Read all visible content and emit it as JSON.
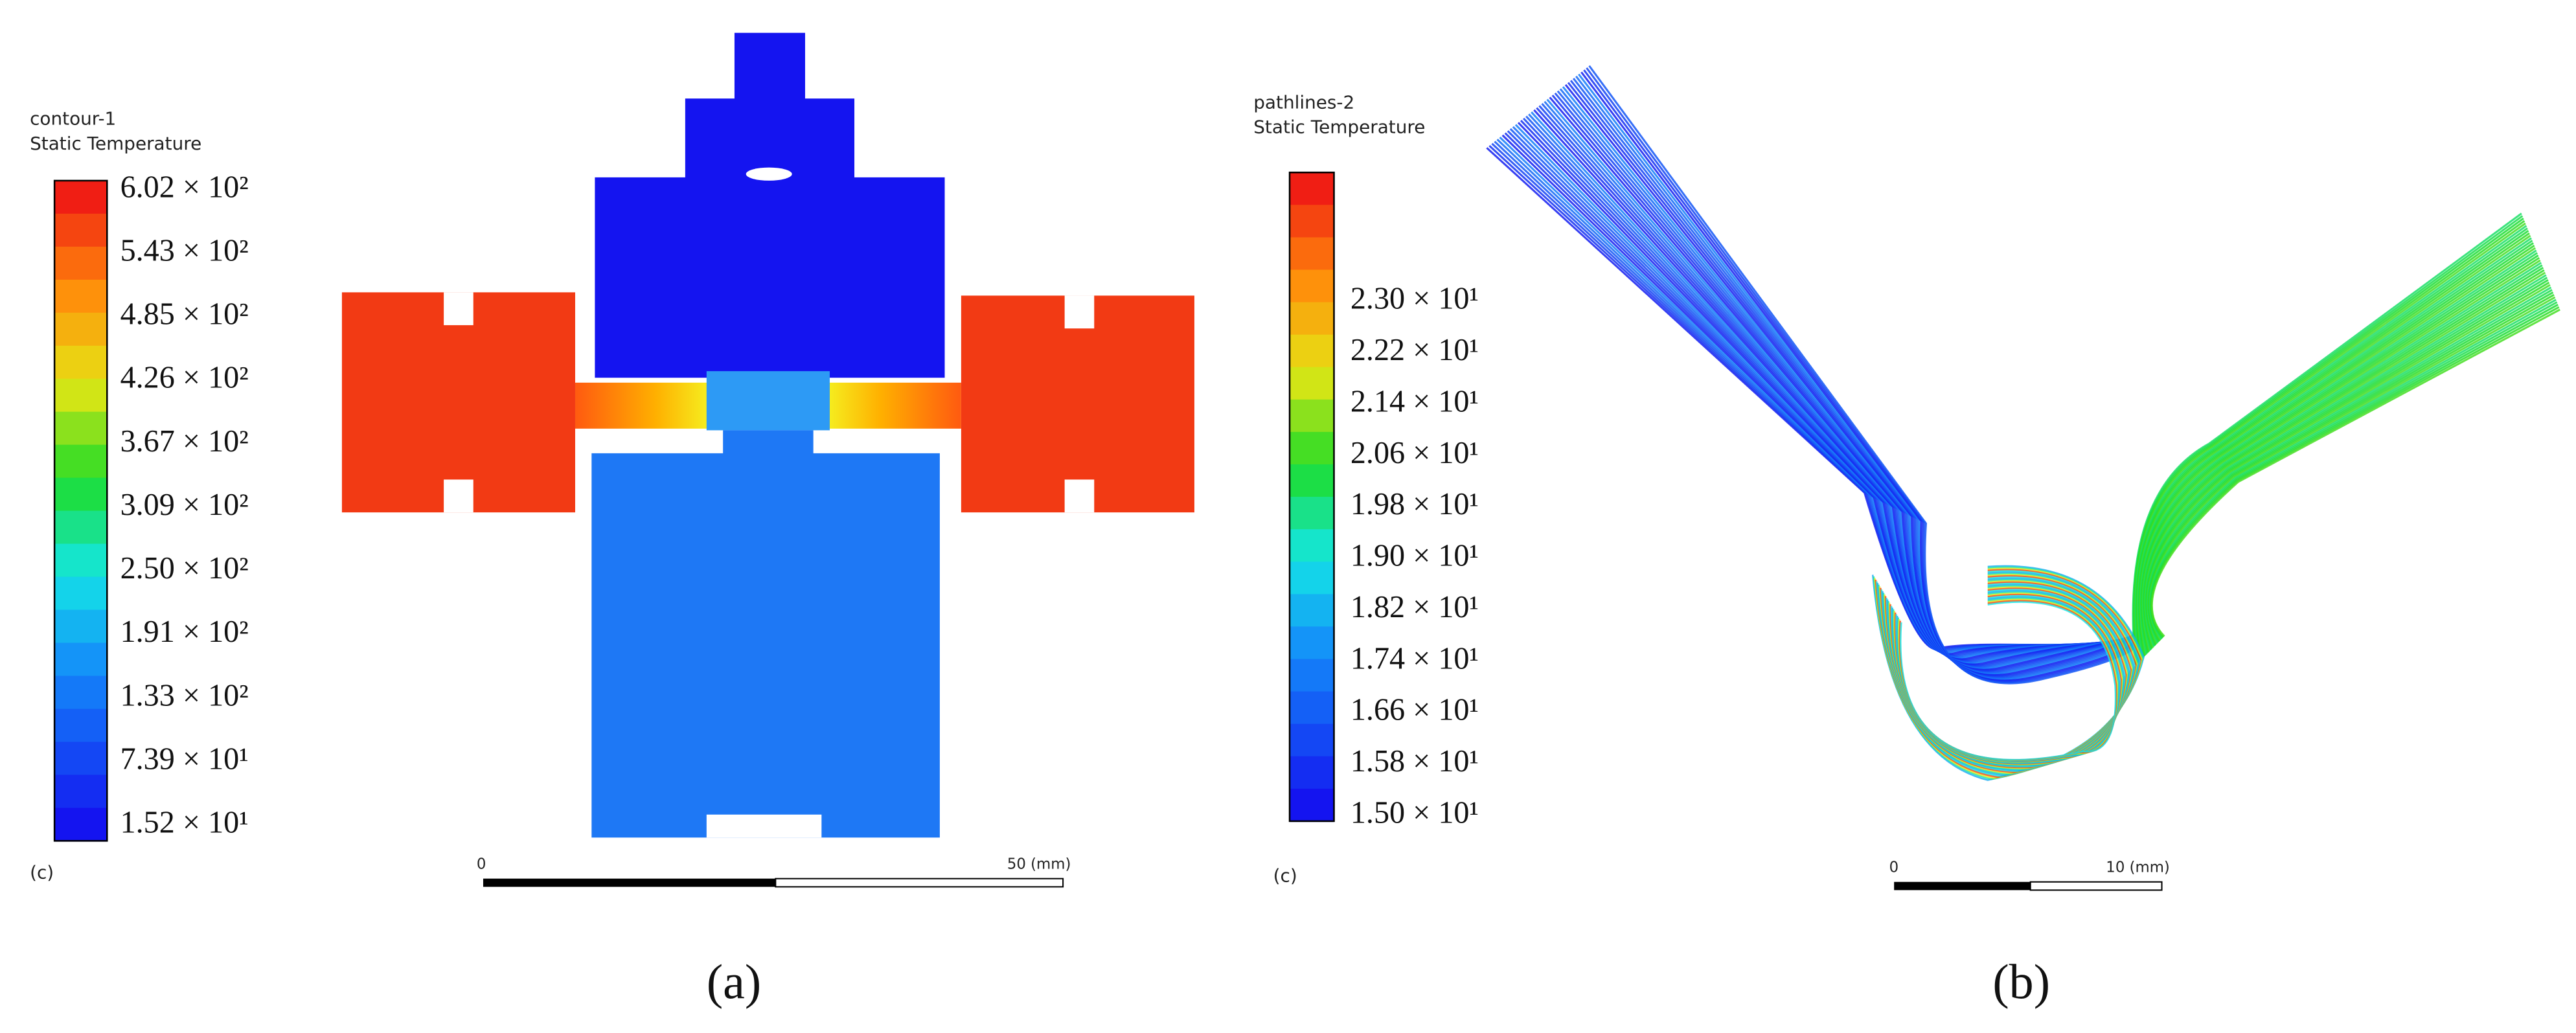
{
  "panel_a": {
    "legend_title": "contour-1",
    "legend_subtitle": "Static Temperature",
    "legend_labels": [
      "6.02 × 10²",
      "5.43 × 10²",
      "4.85 × 10²",
      "4.26 × 10²",
      "3.67 × 10²",
      "3.09 × 10²",
      "2.50 × 10²",
      "1.91 × 10²",
      "1.33 × 10²",
      "7.39 × 10¹",
      "1.52 × 10¹"
    ],
    "corner_label": "(c)",
    "scale_start": "0",
    "scale_end": "50 (mm)",
    "caption": "(a)"
  },
  "panel_b": {
    "legend_title": "pathlines-2",
    "legend_subtitle": "Static Temperature",
    "legend_labels": [
      "2.30 × 10¹",
      "2.22 × 10¹",
      "2.14 × 10¹",
      "2.06 × 10¹",
      "1.98 × 10¹",
      "1.90 × 10¹",
      "1.82 × 10¹",
      "1.74 × 10¹",
      "1.66 × 10¹",
      "1.58 × 10¹",
      "1.50 × 10¹"
    ],
    "corner_label": "(c)",
    "scale_start": "0",
    "scale_end": "10 (mm)",
    "caption": "(b)"
  }
}
